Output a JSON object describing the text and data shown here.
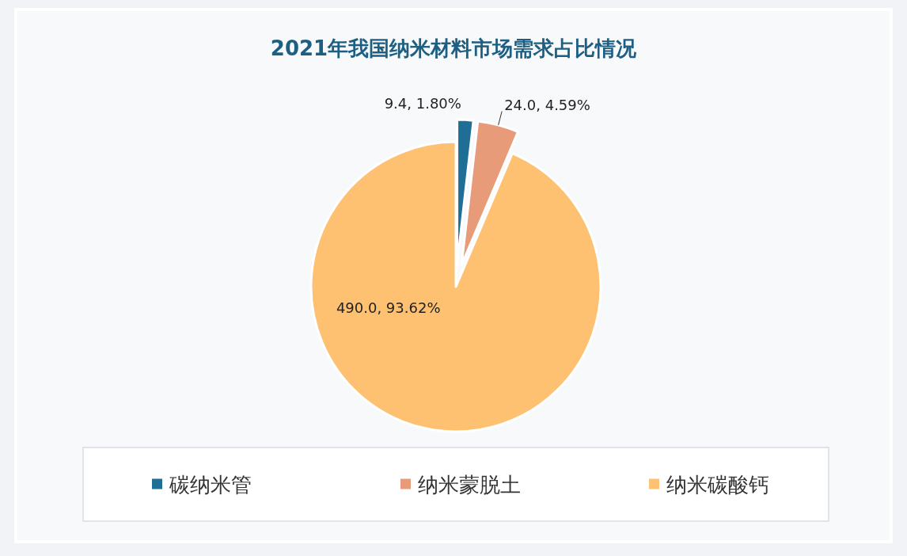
{
  "chart_data": {
    "type": "pie",
    "title": "2021年我国纳米材料市场需求占比情况",
    "categories": [
      "碳纳米管",
      "纳米蒙脱土",
      "纳米碳酸钙"
    ],
    "values": [
      9.4,
      24.0,
      490.0
    ],
    "colors": [
      "#1f6e95",
      "#e89b78",
      "#fec172"
    ],
    "value_labels": [
      "9.4, 1.80%",
      "24.0, 4.59%",
      "490.0, 93.62%"
    ],
    "legend": "bottom"
  }
}
